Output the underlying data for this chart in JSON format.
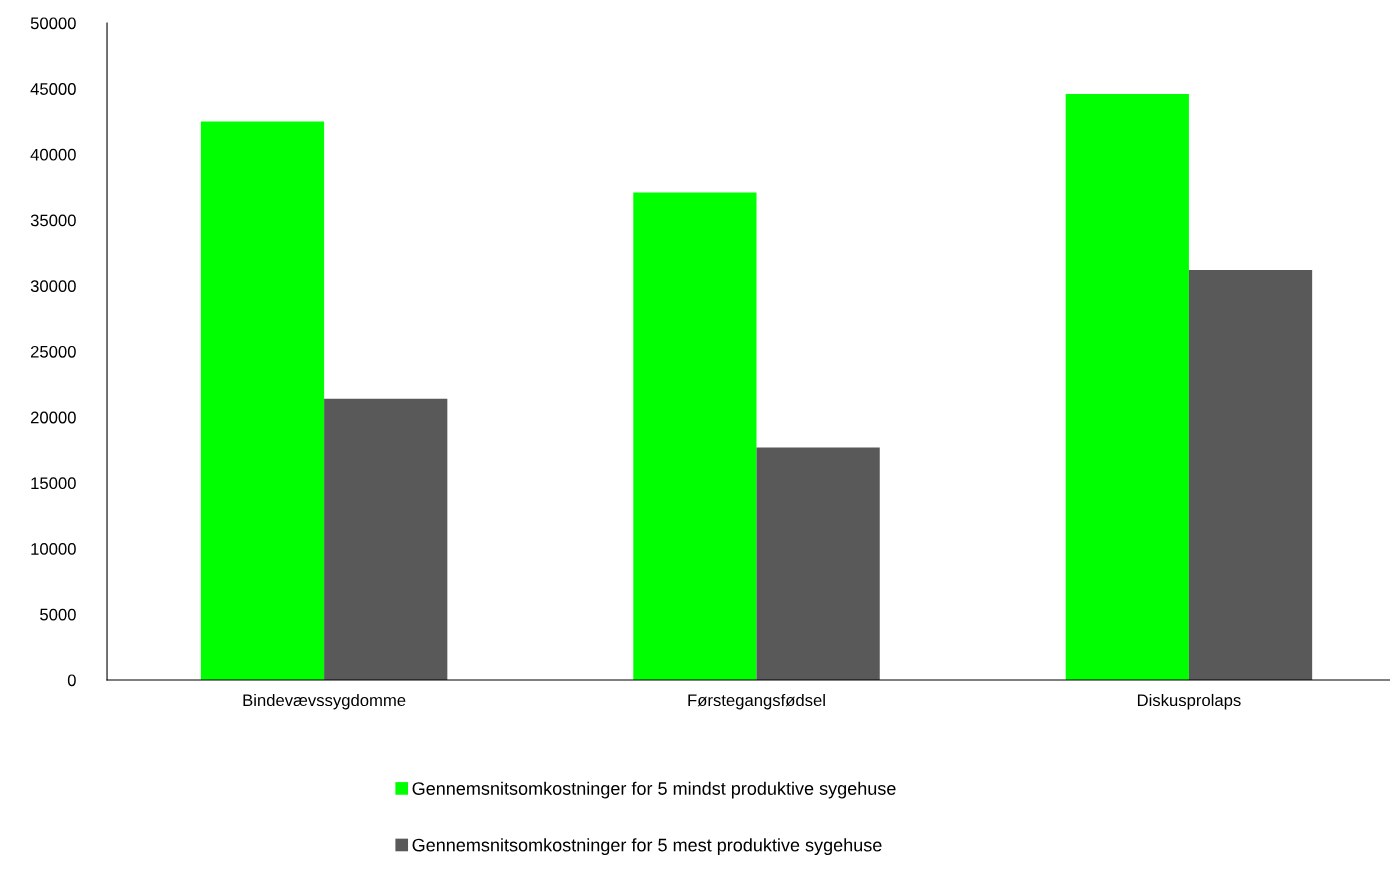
{
  "chart_data": {
    "type": "bar",
    "categories": [
      "Bindevævssygdomme",
      "Førstegangsfødsel",
      "Diskusprolaps"
    ],
    "series": [
      {
        "name": "Gennemsnitsomkostninger for 5 mindst produktive sygehuse",
        "color": "#00ff00",
        "values": [
          42500,
          37100,
          44600
        ]
      },
      {
        "name": "Gennemsnitsomkostninger for 5 mest produktive sygehuse",
        "color": "#595959",
        "values": [
          21400,
          17700,
          31200
        ]
      }
    ],
    "ylim": [
      0,
      50000
    ],
    "yticks": [
      0,
      5000,
      10000,
      15000,
      20000,
      25000,
      30000,
      35000,
      40000,
      45000,
      50000
    ],
    "grid": false,
    "legend": "bottom"
  }
}
